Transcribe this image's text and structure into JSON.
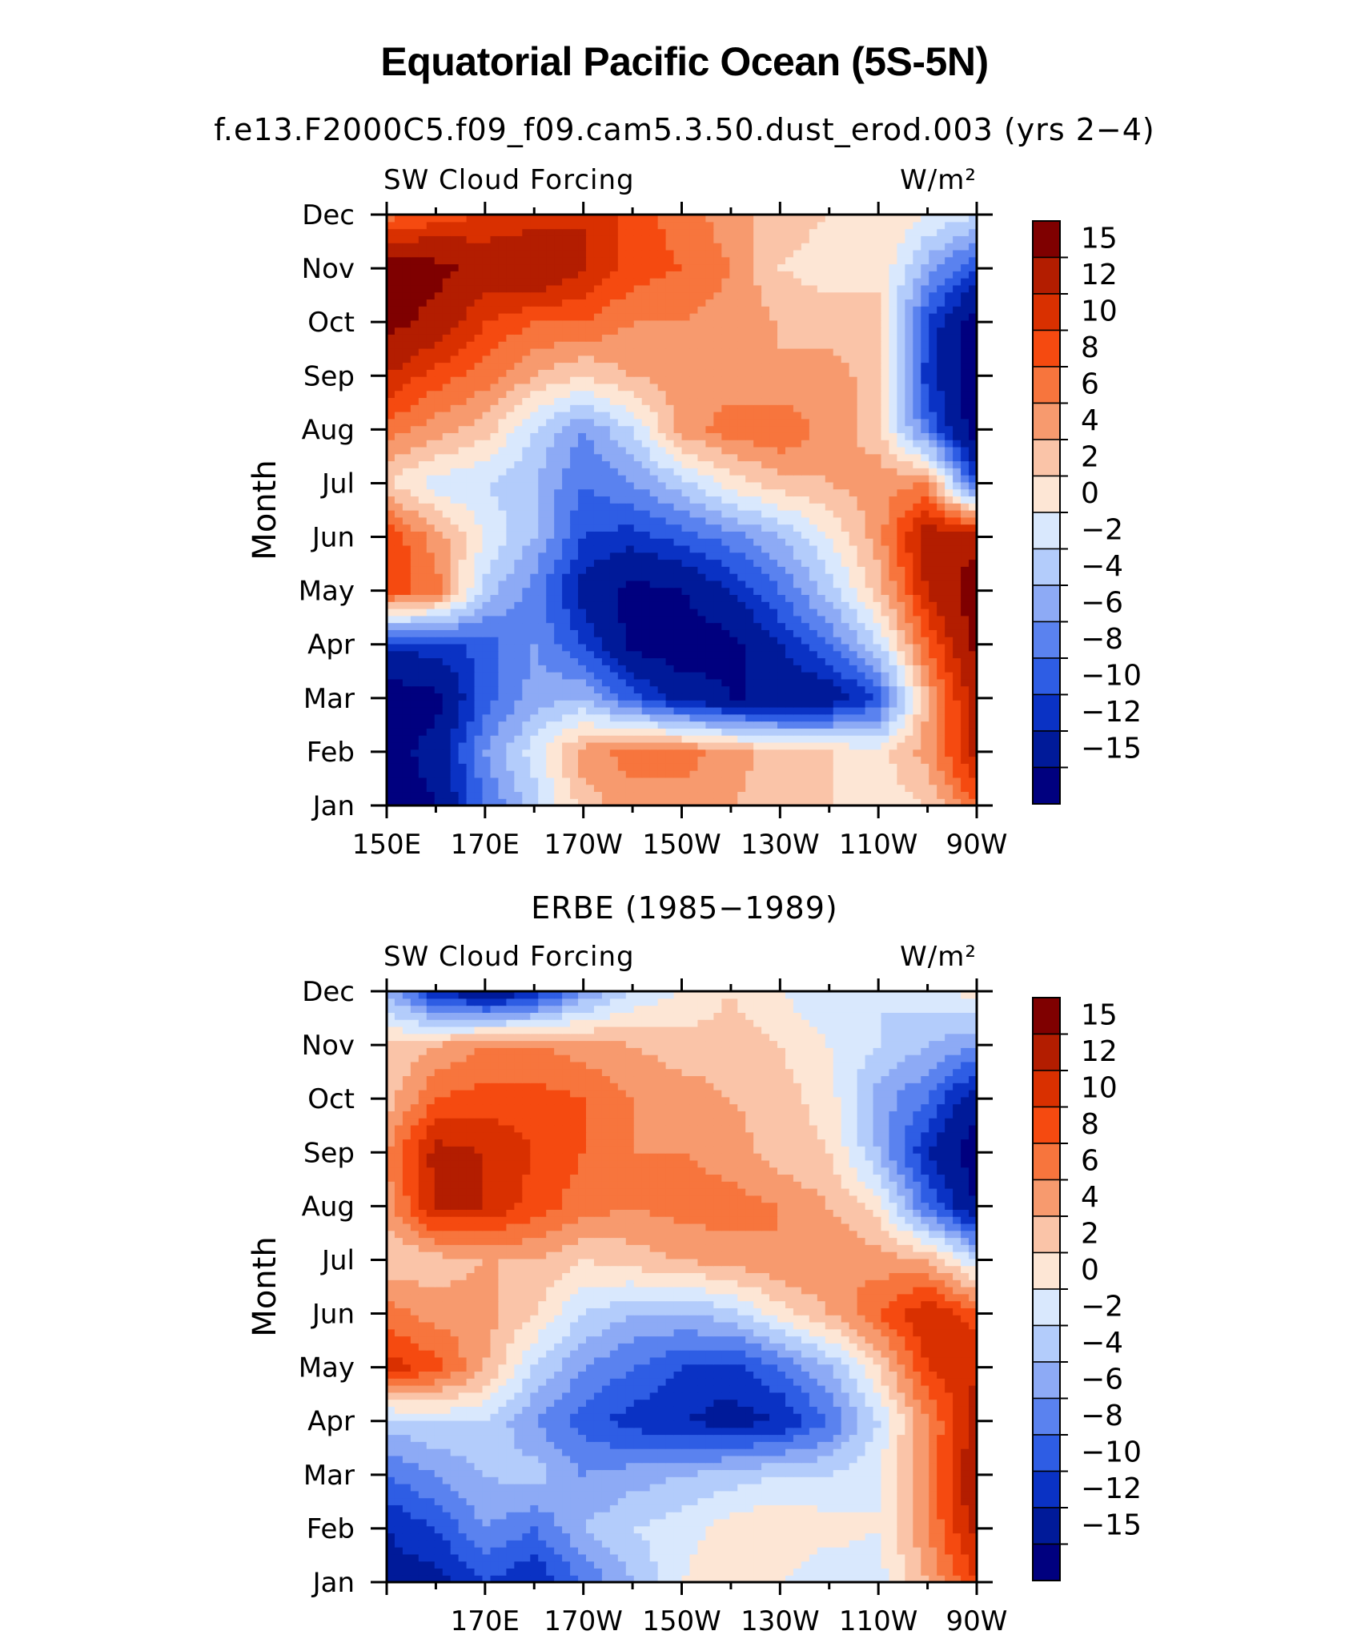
{
  "page": {
    "main_title": "Equatorial Pacific Ocean (5S-5N)"
  },
  "colorbar": {
    "labels": [
      "15",
      "12",
      "10",
      "8",
      "6",
      "4",
      "2",
      "0",
      "−2",
      "−4",
      "−6",
      "−8",
      "−10",
      "−12",
      "−15"
    ],
    "colors": [
      "#7f0000",
      "#b31d00",
      "#d93000",
      "#f54a10",
      "#f7753d",
      "#f79a6e",
      "#fac4a8",
      "#fde6d5",
      "#d9e8fd",
      "#b3ccfb",
      "#8daaf5",
      "#5a82ef",
      "#2e5de4",
      "#0a32c4",
      "#001a99",
      "#00007f"
    ]
  },
  "chart_data": [
    {
      "type": "heatmap",
      "title": "f.e13.F2000C5.f09_f09.cam5.3.50.dust_erod.003 (yrs 2−4)",
      "left_label": "SW Cloud Forcing",
      "units": "W/m²",
      "ylabel": "Month",
      "xlabel": "",
      "x_ticks": [
        "150E",
        "170E",
        "170W",
        "150W",
        "130W",
        "110W",
        "90W"
      ],
      "y_ticks": [
        "Jan",
        "Feb",
        "Mar",
        "Apr",
        "May",
        "Jun",
        "Jul",
        "Aug",
        "Sep",
        "Oct",
        "Nov",
        "Dec"
      ],
      "x_range": [
        "150E",
        "90W"
      ],
      "y_range": [
        "Jan",
        "Dec"
      ],
      "z_levels": [
        -15,
        -12,
        -10,
        -8,
        -6,
        -4,
        -2,
        0,
        2,
        4,
        6,
        8,
        10,
        12,
        15
      ],
      "columns_longitude": [
        "150E",
        "160E",
        "170E",
        "180",
        "170W",
        "160W",
        "150W",
        "140W",
        "130W",
        "120W",
        "110W",
        "100W",
        "90W"
      ],
      "values_by_month": [
        [
          -17,
          -15,
          -8,
          -3,
          3,
          5,
          5,
          4,
          3,
          2,
          1,
          2,
          8
        ],
        [
          -16,
          -14,
          -6,
          -1,
          5,
          7,
          7,
          5,
          3,
          2,
          1,
          5,
          13
        ],
        [
          -17,
          -16,
          -9,
          -5,
          -4,
          -9,
          -13,
          -15,
          -15,
          -14,
          -10,
          4,
          14
        ],
        [
          -11,
          -11,
          -9,
          -6,
          -10,
          -16,
          -17,
          -16,
          -12,
          -8,
          -2,
          8,
          16
        ],
        [
          9,
          7,
          -3,
          -7,
          -13,
          -16,
          -15,
          -12,
          -8,
          -3,
          3,
          12,
          17
        ],
        [
          10,
          5,
          0,
          -4,
          -10,
          -11,
          -9,
          -7,
          -4,
          0,
          5,
          14,
          14
        ],
        [
          2,
          -1,
          -2,
          -4,
          -8,
          -6,
          -3,
          1,
          3,
          4,
          5,
          6,
          -10
        ],
        [
          7,
          5,
          3,
          -2,
          -6,
          -2,
          5,
          7,
          8,
          5,
          3,
          -8,
          -17
        ],
        [
          12,
          9,
          7,
          4,
          2,
          4,
          5,
          5,
          4,
          5,
          3,
          -11,
          -17
        ],
        [
          16,
          14,
          10,
          8,
          8,
          6,
          6,
          5,
          4,
          3,
          2,
          -10,
          -17
        ],
        [
          17,
          16,
          14,
          15,
          12,
          9,
          8,
          6,
          2,
          1,
          2,
          -5,
          -10
        ],
        [
          7,
          9,
          10,
          11,
          12,
          9,
          7,
          5,
          3,
          2,
          2,
          0,
          -2
        ]
      ]
    },
    {
      "type": "heatmap",
      "title": "ERBE (1985−1989)",
      "left_label": "SW Cloud Forcing",
      "units": "W/m²",
      "ylabel": "Month",
      "xlabel": "",
      "x_ticks": [
        "170E",
        "170W",
        "150W",
        "130W",
        "110W",
        "90W"
      ],
      "y_ticks": [
        "Jan",
        "Feb",
        "Mar",
        "Apr",
        "May",
        "Jun",
        "Jul",
        "Aug",
        "Sep",
        "Oct",
        "Nov",
        "Dec"
      ],
      "x_range": [
        "150E",
        "90W"
      ],
      "y_range": [
        "Jan",
        "Dec"
      ],
      "z_levels": [
        -15,
        -12,
        -10,
        -8,
        -6,
        -4,
        -2,
        0,
        2,
        4,
        6,
        8,
        10,
        12,
        15
      ],
      "columns_longitude": [
        "150E",
        "160E",
        "170E",
        "180",
        "170W",
        "160W",
        "150W",
        "140W",
        "130W",
        "120W",
        "110W",
        "100W",
        "90W"
      ],
      "values_by_month": [
        [
          -13,
          -13,
          -10,
          -12,
          -8,
          -4,
          0,
          2,
          0,
          -2,
          -1,
          4,
          10
        ],
        [
          -12,
          -10,
          -6,
          -8,
          -4,
          -2,
          -1,
          1,
          2,
          1,
          0,
          6,
          13
        ],
        [
          -8,
          -6,
          -4,
          -3,
          -6,
          -5,
          -4,
          -3,
          -2,
          -2,
          0,
          6,
          15
        ],
        [
          -3,
          -2,
          -2,
          -6,
          -9,
          -11,
          -12,
          -13,
          -12,
          -8,
          -2,
          6,
          13
        ],
        [
          11,
          9,
          4,
          -2,
          -6,
          -8,
          -10,
          -11,
          -8,
          -4,
          2,
          10,
          12
        ],
        [
          7,
          5,
          5,
          2,
          -2,
          -4,
          -4,
          -3,
          1,
          4,
          8,
          12,
          9
        ],
        [
          2,
          3,
          4,
          4,
          2,
          3,
          4,
          5,
          6,
          6,
          5,
          4,
          -2
        ],
        [
          5,
          12,
          12,
          9,
          7,
          6,
          7,
          7,
          6,
          4,
          1,
          -8,
          -15
        ],
        [
          6,
          13,
          12,
          10,
          8,
          6,
          6,
          5,
          3,
          2,
          -4,
          -12,
          -17
        ],
        [
          3,
          8,
          9,
          9,
          8,
          6,
          5,
          4,
          3,
          1,
          -5,
          -8,
          -14
        ],
        [
          2,
          4,
          6,
          6,
          5,
          4,
          3,
          3,
          2,
          0,
          -2,
          -4,
          -6
        ],
        [
          -4,
          -12,
          -15,
          -12,
          -6,
          -2,
          0,
          2,
          0,
          -2,
          -2,
          -1,
          1
        ]
      ]
    }
  ]
}
